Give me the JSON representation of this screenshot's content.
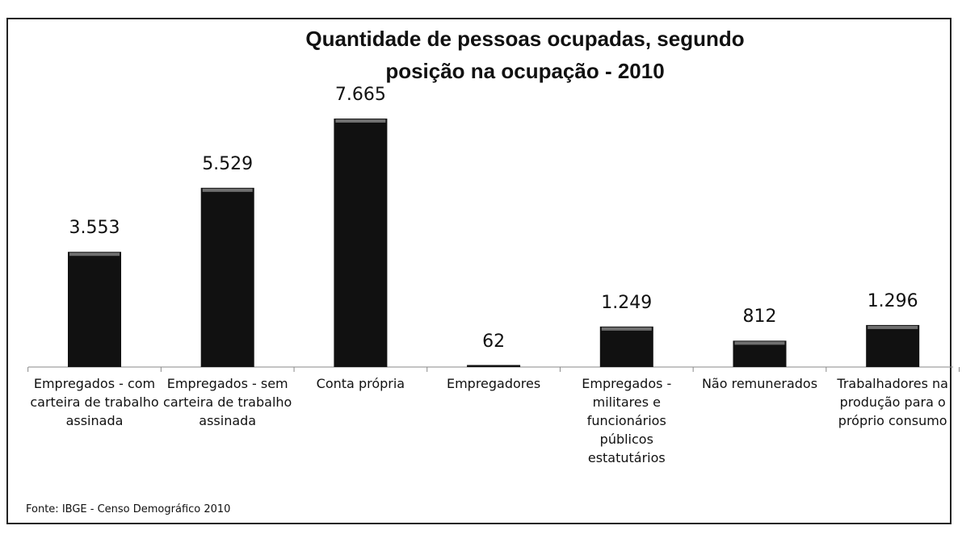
{
  "chart_data": {
    "type": "bar",
    "title": "Quantidade de pessoas ocupadas, segundo posição na ocupação - 2010",
    "categories": [
      "Empregados - com carteira de trabalho assinada",
      "Empregados - sem carteira de trabalho assinada",
      "Conta própria",
      "Empregadores",
      "Empregados - militares e funcionários públicos estatutários",
      "Não remunerados",
      "Trabalhadores na produção para o próprio consumo"
    ],
    "values": [
      3553,
      5529,
      7665,
      62,
      1249,
      812,
      1296
    ],
    "value_labels": [
      "3.553",
      "5.529",
      "7.665",
      "62",
      "1.249",
      "812",
      "1.296"
    ],
    "color": "#111111",
    "source": "Fonte: IBGE - Censo Demográfico 2010"
  }
}
